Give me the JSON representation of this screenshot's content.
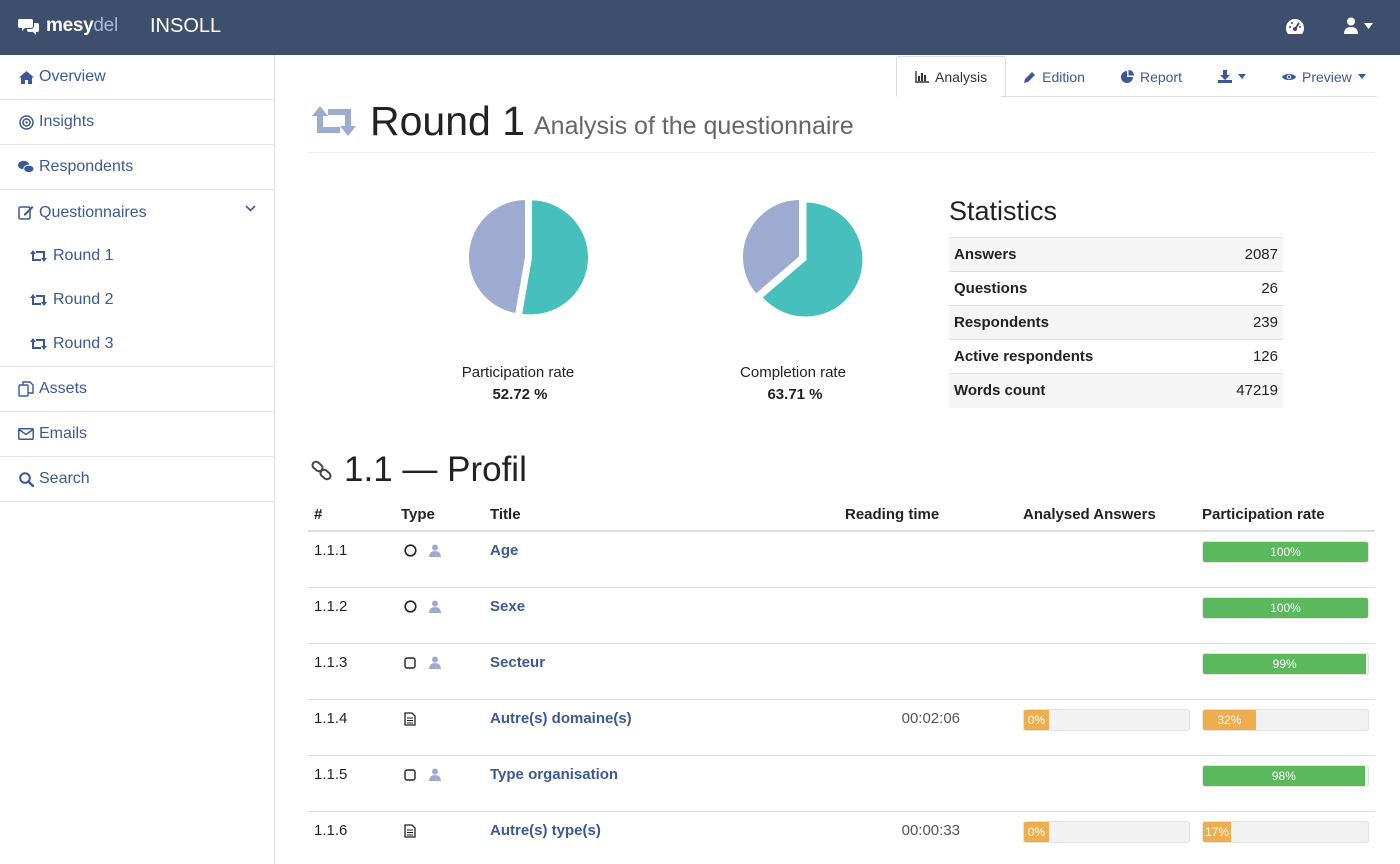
{
  "brand": {
    "name_a": "mesy",
    "name_b": "del",
    "project": "INSOLL"
  },
  "icons": {
    "dashboard": "dashboard-icon",
    "user": "user-icon"
  },
  "sidebar": {
    "items": [
      {
        "label": "Overview",
        "icon": "home-icon"
      },
      {
        "label": "Insights",
        "icon": "target-icon"
      },
      {
        "label": "Respondents",
        "icon": "users-icon"
      },
      {
        "label": "Questionnaires",
        "icon": "edit-icon"
      },
      {
        "label": "Assets",
        "icon": "files-icon"
      },
      {
        "label": "Emails",
        "icon": "envelope-icon"
      },
      {
        "label": "Search",
        "icon": "search-icon"
      }
    ],
    "rounds": [
      "Round 1",
      "Round 2",
      "Round 3"
    ]
  },
  "tabs": [
    "Analysis",
    "Edition",
    "Report",
    "",
    "Preview"
  ],
  "header": {
    "title": "Round 1",
    "subtitle": "Analysis of the questionnaire"
  },
  "rates": [
    {
      "label": "Participation rate",
      "value": "52.72 %",
      "fraction": 0.5272
    },
    {
      "label": "Completion rate",
      "value": "63.71 %",
      "fraction": 0.6371
    }
  ],
  "colors": {
    "pie_main": "#47bfbd",
    "pie_rest": "#9eabd1",
    "green": "#5cb85c",
    "orange": "#f0ad4e",
    "link": "#3b5998",
    "topbar": "#3e4f6e"
  },
  "statistics": {
    "title": "Statistics",
    "rows": [
      {
        "key": "Answers",
        "value": "2087"
      },
      {
        "key": "Questions",
        "value": "26"
      },
      {
        "key": "Respondents",
        "value": "239"
      },
      {
        "key": "Active respondents",
        "value": "126"
      },
      {
        "key": "Words count",
        "value": "47219"
      }
    ]
  },
  "section": {
    "title": "1.1 — Profil",
    "columns": [
      "#",
      "Type",
      "Title",
      "Reading time",
      "Analysed Answers",
      "Participation rate"
    ],
    "rows": [
      {
        "num": "1.1.1",
        "type": "radio",
        "person": true,
        "title": "Age",
        "reading_time": "",
        "analysed": null,
        "participation": 100,
        "participation_label": "100%",
        "color": "green"
      },
      {
        "num": "1.1.2",
        "type": "radio",
        "person": true,
        "title": "Sexe",
        "reading_time": "",
        "analysed": null,
        "participation": 100,
        "participation_label": "100%",
        "color": "green"
      },
      {
        "num": "1.1.3",
        "type": "checkbox",
        "person": true,
        "title": "Secteur",
        "reading_time": "",
        "analysed": null,
        "participation": 99,
        "participation_label": "99%",
        "color": "green"
      },
      {
        "num": "1.1.4",
        "type": "text",
        "person": false,
        "title": "Autre(s) domaine(s)",
        "reading_time": "00:02:06",
        "analysed": 0,
        "analysed_label": "0%",
        "participation": 32,
        "participation_label": "32%",
        "color": "orange"
      },
      {
        "num": "1.1.5",
        "type": "checkbox",
        "person": true,
        "title": "Type organisation",
        "reading_time": "",
        "analysed": null,
        "participation": 98,
        "participation_label": "98%",
        "color": "green"
      },
      {
        "num": "1.1.6",
        "type": "text",
        "person": false,
        "title": "Autre(s) type(s)",
        "reading_time": "00:00:33",
        "analysed": 0,
        "analysed_label": "0%",
        "participation": 17,
        "participation_label": "17%",
        "color": "orange"
      }
    ]
  }
}
